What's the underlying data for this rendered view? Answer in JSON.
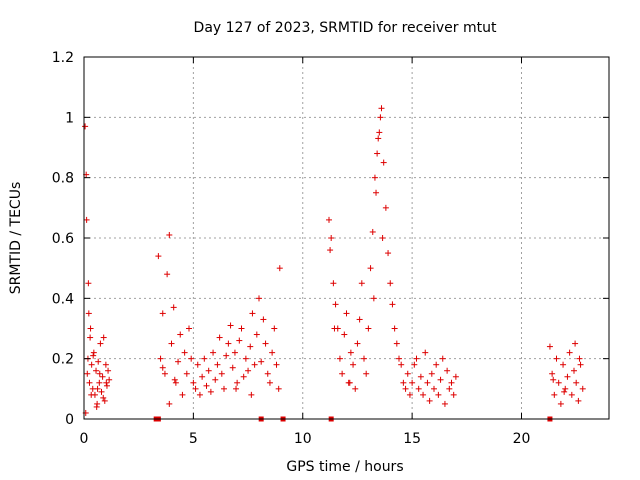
{
  "chart_data": {
    "type": "scatter",
    "title": "Day 127 of 2023, SRMTID for receiver mtut",
    "xlabel": "GPS time / hours",
    "ylabel": "SRMTID / TECUs",
    "xlim": [
      0,
      24
    ],
    "ylim": [
      0,
      1.2
    ],
    "x_ticks": [
      0,
      5,
      10,
      15,
      20
    ],
    "x_tick_labels": [
      "0",
      "5",
      "10",
      "15",
      "20"
    ],
    "y_ticks": [
      0,
      0.2,
      0.4,
      0.6,
      0.8,
      1.0,
      1.2
    ],
    "y_tick_labels": [
      "0",
      "0.2",
      "0.4",
      "0.6",
      "0.8",
      "1",
      "1.2"
    ],
    "grid": true,
    "marker": "plus",
    "marker_color": "#dd0000",
    "series": [
      {
        "name": "SRMTID",
        "x": [
          0.05,
          0.1,
          0.12,
          0.15,
          0.18,
          0.2,
          0.25,
          0.3,
          0.35,
          0.4,
          0.45,
          0.5,
          0.55,
          0.6,
          0.65,
          0.7,
          0.75,
          0.8,
          0.85,
          0.9,
          0.95,
          1.0,
          1.05,
          1.1,
          1.15,
          0.08,
          0.22,
          0.33,
          0.42,
          0.58,
          0.72,
          0.88,
          1.02,
          0.28,
          0.62,
          3.4,
          3.5,
          3.6,
          3.7,
          3.8,
          3.9,
          4.0,
          4.1,
          4.2,
          4.3,
          4.4,
          4.5,
          4.6,
          4.7,
          4.8,
          4.9,
          5.0,
          5.1,
          5.2,
          5.3,
          5.4,
          5.5,
          5.6,
          5.7,
          5.8,
          5.9,
          6.0,
          6.1,
          6.2,
          6.3,
          6.4,
          6.5,
          6.6,
          6.7,
          6.8,
          6.9,
          7.0,
          7.1,
          7.2,
          7.3,
          7.4,
          7.5,
          7.6,
          7.7,
          7.8,
          7.9,
          8.0,
          8.1,
          8.2,
          8.3,
          8.4,
          8.5,
          8.6,
          8.7,
          8.8,
          8.9,
          3.6,
          3.9,
          4.15,
          8.95,
          7.65,
          6.95,
          11.2,
          11.3,
          11.4,
          11.5,
          11.6,
          11.7,
          11.8,
          11.9,
          12.0,
          12.1,
          12.2,
          12.3,
          12.4,
          12.5,
          12.6,
          12.7,
          12.8,
          12.9,
          13.0,
          13.1,
          13.2,
          13.3,
          13.4,
          13.5,
          13.6,
          13.7,
          13.8,
          13.9,
          14.0,
          14.1,
          14.2,
          14.3,
          14.4,
          14.5,
          14.6,
          14.7,
          14.8,
          14.9,
          15.0,
          15.1,
          15.2,
          15.3,
          15.4,
          15.5,
          15.6,
          15.7,
          15.8,
          15.9,
          16.0,
          16.1,
          16.2,
          16.3,
          16.4,
          16.5,
          16.6,
          16.7,
          16.8,
          16.9,
          17.0,
          13.45,
          13.55,
          13.35,
          13.25,
          13.65,
          12.15,
          11.25,
          11.45,
          21.3,
          21.4,
          21.5,
          21.6,
          21.7,
          21.8,
          21.9,
          22.0,
          22.1,
          22.2,
          22.3,
          22.4,
          22.5,
          22.6,
          22.7,
          22.8,
          21.45,
          21.95,
          22.45,
          22.65
        ],
        "y": [
          0.97,
          0.81,
          0.66,
          0.15,
          0.2,
          0.45,
          0.12,
          0.3,
          0.18,
          0.1,
          0.22,
          0.08,
          0.16,
          0.05,
          0.19,
          0.12,
          0.25,
          0.09,
          0.14,
          0.27,
          0.06,
          0.18,
          0.11,
          0.16,
          0.13,
          0.02,
          0.35,
          0.08,
          0.21,
          0.04,
          0.15,
          0.07,
          0.12,
          0.27,
          0.1,
          0.54,
          0.2,
          0.35,
          0.15,
          0.48,
          0.61,
          0.25,
          0.37,
          0.12,
          0.19,
          0.28,
          0.08,
          0.22,
          0.15,
          0.3,
          0.2,
          0.12,
          0.1,
          0.18,
          0.08,
          0.14,
          0.2,
          0.11,
          0.16,
          0.09,
          0.22,
          0.13,
          0.18,
          0.27,
          0.15,
          0.1,
          0.21,
          0.25,
          0.31,
          0.17,
          0.22,
          0.12,
          0.26,
          0.3,
          0.14,
          0.2,
          0.16,
          0.24,
          0.35,
          0.18,
          0.28,
          0.4,
          0.19,
          0.33,
          0.25,
          0.15,
          0.12,
          0.22,
          0.3,
          0.18,
          0.1,
          0.17,
          0.05,
          0.13,
          0.5,
          0.08,
          0.1,
          0.66,
          0.6,
          0.45,
          0.38,
          0.3,
          0.2,
          0.15,
          0.28,
          0.35,
          0.12,
          0.22,
          0.18,
          0.1,
          0.25,
          0.33,
          0.45,
          0.2,
          0.15,
          0.3,
          0.5,
          0.62,
          0.8,
          0.88,
          0.95,
          1.03,
          0.85,
          0.7,
          0.55,
          0.45,
          0.38,
          0.3,
          0.25,
          0.2,
          0.18,
          0.12,
          0.1,
          0.15,
          0.08,
          0.12,
          0.18,
          0.2,
          0.1,
          0.14,
          0.08,
          0.22,
          0.12,
          0.06,
          0.15,
          0.1,
          0.18,
          0.08,
          0.13,
          0.2,
          0.05,
          0.16,
          0.1,
          0.12,
          0.08,
          0.14,
          0.93,
          1.0,
          0.75,
          0.4,
          0.6,
          0.12,
          0.56,
          0.3,
          0.24,
          0.15,
          0.08,
          0.2,
          0.12,
          0.05,
          0.18,
          0.1,
          0.14,
          0.22,
          0.08,
          0.16,
          0.12,
          0.06,
          0.18,
          0.1,
          0.13,
          0.09,
          0.25,
          0.2
        ]
      }
    ],
    "baseline_markers_x": [
      3.3,
      3.4,
      8.1,
      9.1,
      11.3,
      21.3
    ]
  }
}
